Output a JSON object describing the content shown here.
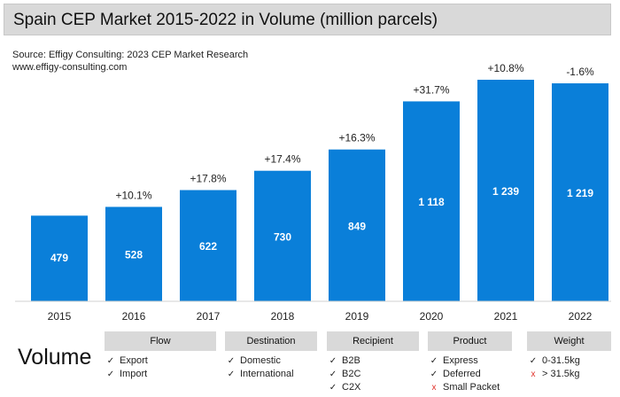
{
  "header": {
    "title": "Spain CEP Market 2015-2022 in Volume (million parcels)",
    "source_line1": "Source: Effigy Consulting: 2023 CEP Market Research",
    "source_line2": "www.effigy-consulting.com"
  },
  "chart_data": {
    "type": "bar",
    "categories": [
      "2015",
      "2016",
      "2017",
      "2018",
      "2019",
      "2020",
      "2021",
      "2022"
    ],
    "values": [
      479,
      528,
      622,
      730,
      849,
      1118,
      1239,
      1219
    ],
    "value_labels": [
      "479",
      "528",
      "622",
      "730",
      "849",
      "1 118",
      "1 239",
      "1 219"
    ],
    "growth_labels": [
      "",
      "+10.1%",
      "+17.8%",
      "+17.4%",
      "+16.3%",
      "+31.7%",
      "+10.8%",
      "-1.6%"
    ],
    "title": "Spain CEP Market 2015-2022 in Volume (million parcels)",
    "xlabel": "",
    "ylabel": "",
    "ylim": [
      0,
      1239
    ],
    "grid": false,
    "bar_color": "#0a7fd9"
  },
  "segmentation": {
    "label": "Volume",
    "categories": [
      {
        "title": "Flow",
        "items": [
          {
            "text": "Export",
            "included": true
          },
          {
            "text": "Import",
            "included": true
          }
        ]
      },
      {
        "title": "Destination",
        "items": [
          {
            "text": "Domestic",
            "included": true
          },
          {
            "text": "International",
            "included": true
          }
        ]
      },
      {
        "title": "Recipient",
        "items": [
          {
            "text": "B2B",
            "included": true
          },
          {
            "text": "B2C",
            "included": true
          },
          {
            "text": "C2X",
            "included": true
          }
        ]
      },
      {
        "title": "Product",
        "items": [
          {
            "text": "Express",
            "included": true
          },
          {
            "text": "Deferred",
            "included": true
          },
          {
            "text": "Small Packet",
            "included": false
          }
        ]
      },
      {
        "title": "Weight",
        "items": [
          {
            "text": "0-31.5kg",
            "included": true
          },
          {
            "text": "> 31.5kg",
            "included": false
          }
        ]
      }
    ],
    "check_mark": "✓",
    "cross_mark": "x"
  }
}
